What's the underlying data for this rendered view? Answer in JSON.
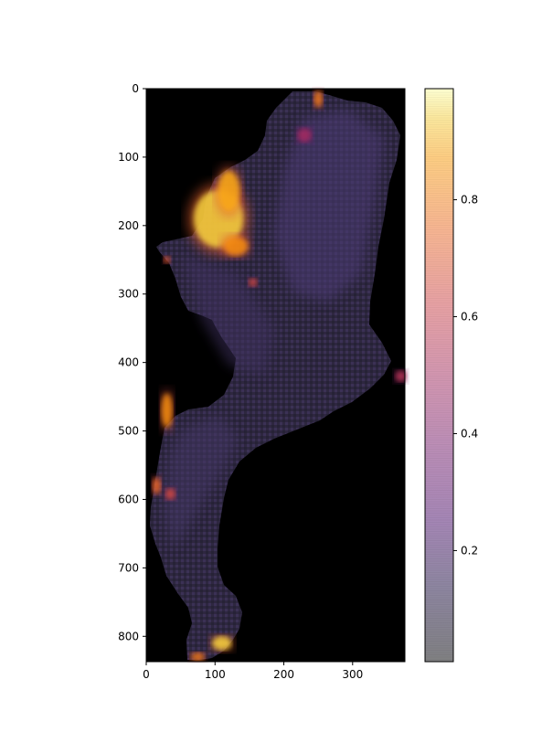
{
  "chart_data": {
    "type": "heatmap",
    "title": "",
    "xlabel": "",
    "ylabel": "",
    "image": {
      "xlim": [
        0,
        376
      ],
      "ylim": [
        837,
        0
      ],
      "background": "#000000",
      "region_note_color": "#3a3250",
      "hotspots": [
        {
          "x": 105,
          "y": 190,
          "rx": 36,
          "ry": 42,
          "value": 0.95
        },
        {
          "x": 120,
          "y": 150,
          "rx": 16,
          "ry": 30,
          "value": 0.9
        },
        {
          "x": 130,
          "y": 230,
          "rx": 18,
          "ry": 14,
          "value": 0.85
        },
        {
          "x": 250,
          "y": 15,
          "rx": 6,
          "ry": 12,
          "value": 0.8
        },
        {
          "x": 30,
          "y": 470,
          "rx": 8,
          "ry": 25,
          "value": 0.85
        },
        {
          "x": 15,
          "y": 580,
          "rx": 6,
          "ry": 12,
          "value": 0.75
        },
        {
          "x": 110,
          "y": 810,
          "rx": 14,
          "ry": 10,
          "value": 0.95
        },
        {
          "x": 75,
          "y": 830,
          "rx": 10,
          "ry": 6,
          "value": 0.8
        },
        {
          "x": 35,
          "y": 592,
          "rx": 7,
          "ry": 8,
          "value": 0.65
        },
        {
          "x": 370,
          "y": 420,
          "rx": 8,
          "ry": 8,
          "value": 0.55
        },
        {
          "x": 155,
          "y": 283,
          "rx": 6,
          "ry": 6,
          "value": 0.65
        },
        {
          "x": 30,
          "y": 250,
          "rx": 5,
          "ry": 5,
          "value": 0.7
        },
        {
          "x": 230,
          "y": 68,
          "rx": 10,
          "ry": 10,
          "value": 0.5
        }
      ]
    },
    "x_ticks": [
      0,
      100,
      200,
      300
    ],
    "x_tick_labels": [
      "0",
      "100",
      "200",
      "300"
    ],
    "y_ticks": [
      0,
      100,
      200,
      300,
      400,
      500,
      600,
      700,
      800
    ],
    "y_tick_labels": [
      "0",
      "100",
      "200",
      "300",
      "400",
      "500",
      "600",
      "700",
      "800"
    ],
    "colorbar": {
      "colormap": "inferno",
      "alpha": 0.5,
      "range": [
        0.01,
        0.99
      ],
      "ticks": [
        0.2,
        0.4,
        0.6,
        0.8
      ],
      "tick_labels": [
        "0.2",
        "0.4",
        "0.6",
        "0.8"
      ]
    }
  }
}
